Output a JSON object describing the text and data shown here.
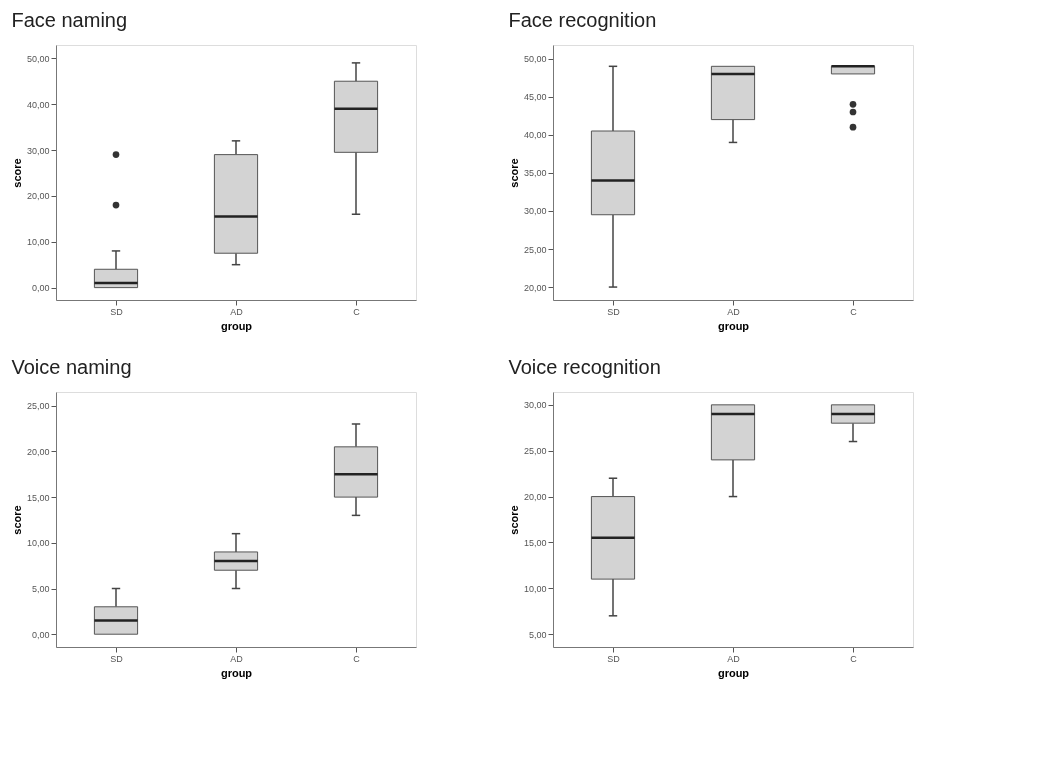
{
  "chart_data": [
    {
      "type": "box",
      "title": "Face naming",
      "xlabel": "group",
      "ylabel": "score",
      "categories": [
        "SD",
        "AD",
        "C"
      ],
      "ylim": [
        -2.7,
        52.9
      ],
      "yticks": [
        {
          "value": 0,
          "label": "0,00"
        },
        {
          "value": 10,
          "label": "10,00"
        },
        {
          "value": 20,
          "label": "20,00"
        },
        {
          "value": 30,
          "label": "30,00"
        },
        {
          "value": 40,
          "label": "40,00"
        },
        {
          "value": 50,
          "label": "50,00"
        }
      ],
      "grid": false,
      "series": [
        {
          "color": "#d3d3d3",
          "boxes": [
            {
              "low": 0,
              "q1": 0,
              "median": 1,
              "q3": 4,
              "high": 8,
              "outliers": [
                18,
                29
              ]
            },
            {
              "low": 5,
              "q1": 7.5,
              "median": 15.5,
              "q3": 29,
              "high": 32
            },
            {
              "low": 16,
              "q1": 29.5,
              "median": 39,
              "q3": 45,
              "high": 49
            }
          ]
        }
      ]
    },
    {
      "type": "box",
      "title": "Face recognition",
      "xlabel": "group",
      "ylabel": "score",
      "categories": [
        "SD",
        "AD",
        "C"
      ],
      "ylim": [
        18.3,
        51.8
      ],
      "yticks": [
        {
          "value": 20,
          "label": "20,00"
        },
        {
          "value": 25,
          "label": "25,00"
        },
        {
          "value": 30,
          "label": "30,00"
        },
        {
          "value": 35,
          "label": "35,00"
        },
        {
          "value": 40,
          "label": "40,00"
        },
        {
          "value": 45,
          "label": "45,00"
        },
        {
          "value": 50,
          "label": "50,00"
        }
      ],
      "grid": false,
      "series": [
        {
          "color": "#d3d3d3",
          "boxes": [
            {
              "low": 20,
              "q1": 29.5,
              "median": 34,
              "q3": 40.5,
              "high": 49
            },
            {
              "low": 39,
              "q1": 42,
              "median": 48,
              "q3": 49,
              "high": 49
            },
            {
              "low": 48,
              "q1": 48,
              "median": 49,
              "q3": 49,
              "high": 49,
              "outliers": [
                44,
                43,
                41
              ]
            }
          ]
        }
      ]
    },
    {
      "type": "box",
      "title": "Voice naming",
      "xlabel": "group",
      "ylabel": "score",
      "categories": [
        "SD",
        "AD",
        "C"
      ],
      "ylim": [
        -1.4,
        26.5
      ],
      "yticks": [
        {
          "value": 0,
          "label": "0,00"
        },
        {
          "value": 5,
          "label": "5,00"
        },
        {
          "value": 10,
          "label": "10,00"
        },
        {
          "value": 15,
          "label": "15,00"
        },
        {
          "value": 20,
          "label": "20,00"
        },
        {
          "value": 25,
          "label": "25,00"
        }
      ],
      "grid": false,
      "series": [
        {
          "color": "#d3d3d3",
          "boxes": [
            {
              "low": 0,
              "q1": 0,
              "median": 1.5,
              "q3": 3,
              "high": 5
            },
            {
              "low": 5,
              "q1": 7,
              "median": 8,
              "q3": 9,
              "high": 11
            },
            {
              "low": 13,
              "q1": 15,
              "median": 17.5,
              "q3": 20.5,
              "high": 23
            }
          ]
        }
      ]
    },
    {
      "type": "box",
      "title": "Voice recognition",
      "xlabel": "group",
      "ylabel": "score",
      "categories": [
        "SD",
        "AD",
        "C"
      ],
      "ylim": [
        3.6,
        31.4
      ],
      "yticks": [
        {
          "value": 5,
          "label": "5,00"
        },
        {
          "value": 10,
          "label": "10,00"
        },
        {
          "value": 15,
          "label": "15,00"
        },
        {
          "value": 20,
          "label": "20,00"
        },
        {
          "value": 25,
          "label": "25,00"
        },
        {
          "value": 30,
          "label": "30,00"
        }
      ],
      "grid": false,
      "series": [
        {
          "color": "#d3d3d3",
          "boxes": [
            {
              "low": 7,
              "q1": 11,
              "median": 15.5,
              "q3": 20,
              "high": 22
            },
            {
              "low": 20,
              "q1": 24,
              "median": 29,
              "q3": 30,
              "high": 30
            },
            {
              "low": 26,
              "q1": 28,
              "median": 29,
              "q3": 30,
              "high": 30
            }
          ]
        }
      ]
    }
  ]
}
